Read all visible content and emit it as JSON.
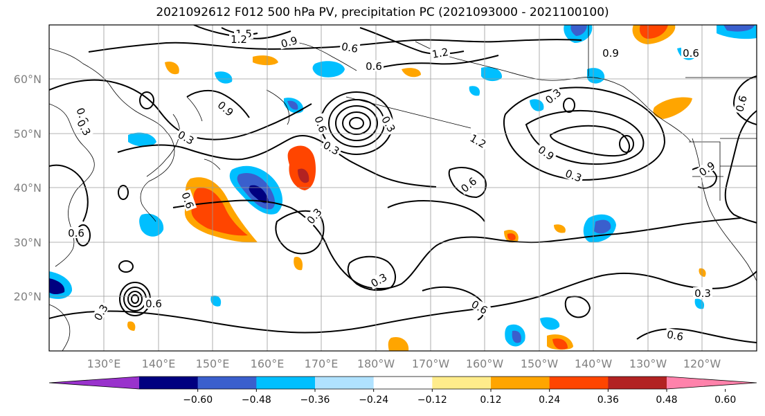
{
  "title": "2021092612 F012 500 hPa PV, precipitation PC (2021093000 - 2021100100)",
  "lat_labels": [
    "60°N",
    "50°N",
    "40°N",
    "30°N",
    "20°N"
  ],
  "lon_labels": [
    "130°E",
    "140°E",
    "150°E",
    "160°E",
    "170°E",
    "180°W",
    "170°W",
    "160°W",
    "150°W",
    "140°W",
    "130°W",
    "120°W"
  ],
  "colorbar": {
    "tick_labels": [
      "−0.60",
      "−0.48",
      "−0.36",
      "−0.24",
      "−0.12",
      "0.12",
      "0.24",
      "0.36",
      "0.48",
      "0.60"
    ],
    "colors": [
      "#9932cc",
      "#000080",
      "#3a5fcd",
      "#00bfff",
      "#b0e2ff",
      "#ffffff",
      "#ffec8b",
      "#ffa500",
      "#ff4500",
      "#b22222",
      "#ff82ab"
    ]
  },
  "contour_labels": [
    "1.5",
    "1.2",
    "0.9",
    "0.6",
    "0.6",
    "1.2",
    "0.9",
    "0.6",
    "0.9",
    "0.6",
    "0.3",
    "0.6",
    "0.6",
    "0.3",
    "1.2",
    "0.9",
    "0.3",
    "0.6",
    "0.9",
    "0.6",
    "0.3",
    "0.6",
    "0.3",
    "0.6",
    "0.3",
    "0.6",
    "0.3",
    "0.6",
    "0.3",
    "0.3",
    "0.3"
  ]
}
